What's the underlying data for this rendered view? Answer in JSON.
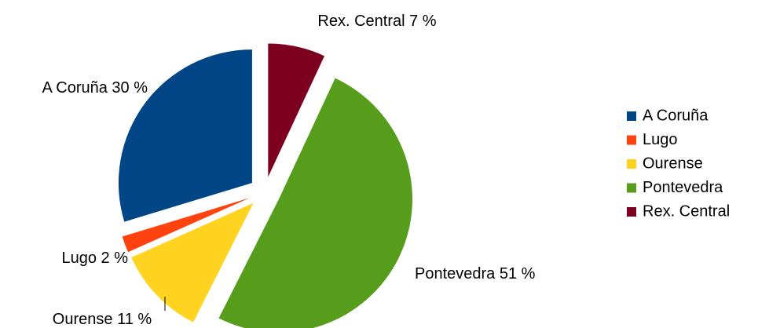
{
  "chart_data": {
    "type": "pie",
    "categories": [
      "A Coruña",
      "Lugo",
      "Ourense",
      "Pontevedra",
      "Rex. Central"
    ],
    "values": [
      30,
      2,
      11,
      51,
      7
    ],
    "value_labels": [
      "30 %",
      "2 %",
      "11 %",
      "51 %",
      "7 %"
    ],
    "colors": [
      "#004586",
      "#ff420e",
      "#ffd320",
      "#579d1c",
      "#7e0021"
    ],
    "legend": "right"
  }
}
